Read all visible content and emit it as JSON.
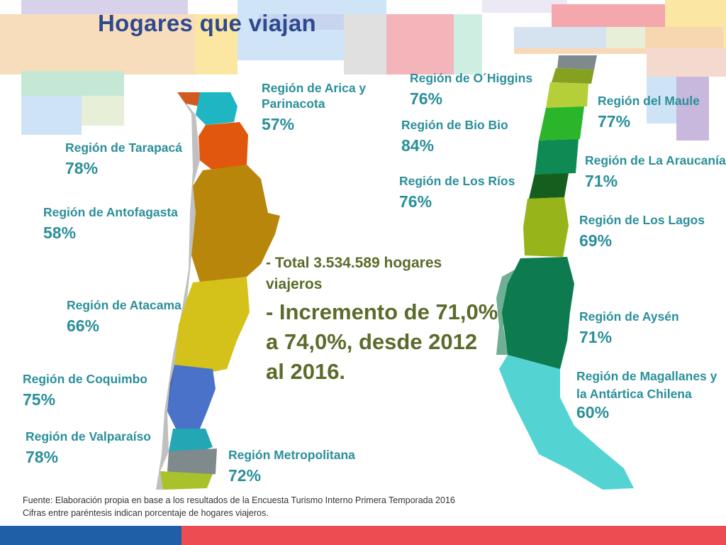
{
  "title": "Hogares que viajan",
  "regions": {
    "arica": {
      "name": "Región de Arica y Parinacota",
      "pct": "57%"
    },
    "tarapaca": {
      "name": "Región de Tarapacá",
      "pct": "78%"
    },
    "antofagasta": {
      "name": "Región de Antofagasta",
      "pct": "58%"
    },
    "atacama": {
      "name": "Región de Atacama",
      "pct": "66%"
    },
    "coquimbo": {
      "name": "Región de Coquimbo",
      "pct": "75%"
    },
    "valparaiso": {
      "name": "Región de Valparaíso",
      "pct": "78%"
    },
    "metropolitana": {
      "name": "Región Metropolitana",
      "pct": "72%"
    },
    "ohiggins": {
      "name": "Región de O´Higgins",
      "pct": "76%"
    },
    "biobio": {
      "name": "Región de Bio Bio",
      "pct": "84%"
    },
    "losrios": {
      "name": "Región de Los Ríos",
      "pct": "76%"
    },
    "maule": {
      "name": "Región del Maule",
      "pct": "77%"
    },
    "araucania": {
      "name": "Región de La Araucanía",
      "pct": "71%"
    },
    "loslagos": {
      "name": "Región de Los Lagos",
      "pct": "69%"
    },
    "aysen": {
      "name": "Región de Aysén",
      "pct": "71%"
    },
    "magallanes": {
      "name": "Región de Magallanes y la Antártica Chilena",
      "pct": "60%"
    }
  },
  "summary": {
    "total": "- Total 3.534.589 hogares viajeros",
    "increment": "- Incremento de 71,0% a 74,0%, desde 2012 al 2016."
  },
  "footer": {
    "source": "Fuente: Elaboración propia en base a los resultados de la Encuesta Turismo Interno Primera Temporada 2016",
    "note": "Cifras entre paréntesis indican porcentaje de hogares viajeros."
  },
  "colors": {
    "title": "#2e4a8f",
    "label": "#2a8f9a",
    "summary": "#5b6b2b",
    "bar_blue": "#1f5fa8",
    "bar_red": "#ec4c52"
  }
}
